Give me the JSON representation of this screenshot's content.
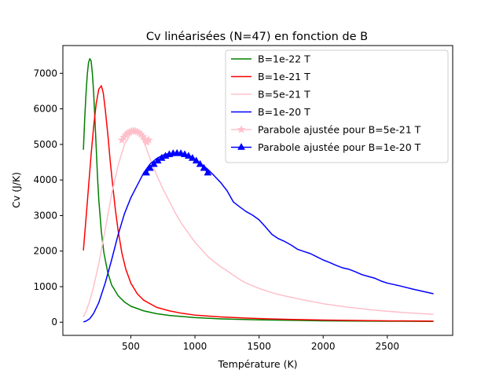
{
  "chart_data": {
    "type": "line",
    "title": "Cv linéarisées (N=47) en fonction de B",
    "xlabel": "Température (K)",
    "ylabel": "Cv (J/K)",
    "xlim": [
      -30,
      3010
    ],
    "ylim": [
      -370,
      7780
    ],
    "xticks": [
      500,
      1000,
      1500,
      2000,
      2500
    ],
    "yticks": [
      0,
      1000,
      2000,
      3000,
      4000,
      5000,
      6000,
      7000
    ],
    "grid": false,
    "legend_position": "top-right",
    "series": [
      {
        "name": "B=1e-22 T",
        "color": "#008000",
        "marker": "none",
        "x": [
          130,
          140,
          150,
          160,
          170,
          180,
          190,
          200,
          210,
          220,
          230,
          240,
          250,
          270,
          290,
          320,
          350,
          400,
          450,
          500,
          600,
          700,
          800,
          1000,
          1200,
          1500,
          2000,
          2500,
          2860
        ],
        "y": [
          4850,
          5700,
          6400,
          6950,
          7300,
          7410,
          7350,
          7000,
          6450,
          5700,
          4900,
          4100,
          3450,
          2550,
          1950,
          1400,
          1050,
          750,
          570,
          450,
          320,
          240,
          190,
          130,
          95,
          65,
          40,
          28,
          22
        ]
      },
      {
        "name": "B=1e-21 T",
        "color": "#ff0000",
        "marker": "none",
        "x": [
          130,
          150,
          170,
          190,
          210,
          230,
          250,
          270,
          285,
          300,
          320,
          340,
          360,
          380,
          400,
          430,
          460,
          500,
          550,
          600,
          700,
          800,
          900,
          1000,
          1200,
          1400,
          1600,
          1800,
          2000,
          2500,
          2860
        ],
        "y": [
          2020,
          2900,
          3800,
          4700,
          5500,
          6150,
          6550,
          6650,
          6450,
          6000,
          5300,
          4500,
          3800,
          3150,
          2600,
          1950,
          1500,
          1100,
          800,
          620,
          420,
          320,
          250,
          200,
          150,
          115,
          90,
          75,
          60,
          40,
          30
        ]
      },
      {
        "name": "B=5e-21 T",
        "color": "#ffc0cb",
        "marker": "none",
        "x": [
          130,
          150,
          180,
          210,
          250,
          300,
          350,
          400,
          450,
          500,
          540,
          580,
          620,
          660,
          700,
          750,
          800,
          850,
          900,
          950,
          1000,
          1050,
          1100,
          1150,
          1200,
          1250,
          1300,
          1350,
          1400,
          1500,
          1600,
          1700,
          1800,
          1900,
          2000,
          2200,
          2400,
          2600,
          2860
        ],
        "y": [
          150,
          300,
          600,
          1000,
          1650,
          2600,
          3600,
          4400,
          5000,
          5300,
          5380,
          5250,
          4900,
          4500,
          4150,
          3750,
          3400,
          3050,
          2750,
          2500,
          2250,
          2050,
          1850,
          1700,
          1560,
          1450,
          1320,
          1200,
          1100,
          950,
          830,
          740,
          660,
          590,
          520,
          420,
          340,
          280,
          220
        ]
      },
      {
        "name": "B=1e-20 T",
        "color": "#0000ff",
        "marker": "none",
        "x": [
          130,
          150,
          180,
          210,
          250,
          300,
          350,
          400,
          450,
          500,
          550,
          600,
          650,
          700,
          750,
          800,
          850,
          900,
          950,
          1000,
          1050,
          1100,
          1150,
          1200,
          1250,
          1300,
          1350,
          1400,
          1450,
          1500,
          1550,
          1600,
          1650,
          1700,
          1750,
          1800,
          1850,
          1900,
          1950,
          2000,
          2050,
          2100,
          2150,
          2200,
          2250,
          2300,
          2350,
          2400,
          2450,
          2500,
          2600,
          2700,
          2860
        ],
        "y": [
          10,
          30,
          100,
          250,
          550,
          1100,
          1750,
          2450,
          3050,
          3500,
          3850,
          4200,
          4450,
          4600,
          4700,
          4750,
          4750,
          4720,
          4650,
          4560,
          4450,
          4300,
          4120,
          3930,
          3700,
          3380,
          3240,
          3110,
          3010,
          2880,
          2680,
          2470,
          2350,
          2270,
          2170,
          2050,
          1990,
          1930,
          1840,
          1750,
          1680,
          1600,
          1530,
          1490,
          1420,
          1340,
          1290,
          1240,
          1160,
          1100,
          1020,
          930,
          800
        ]
      },
      {
        "name": "Parabole ajustée pour B=5e-21 T",
        "color": "#ffc0cb",
        "marker": "star",
        "x": [
          430,
          445,
          460,
          475,
          490,
          505,
          520,
          535,
          550,
          565,
          580,
          595,
          610,
          625,
          640
        ],
        "y": [
          5120,
          5200,
          5265,
          5315,
          5350,
          5372,
          5380,
          5375,
          5356,
          5324,
          5278,
          5219,
          5146,
          5060,
          5120
        ]
      },
      {
        "name": "Parabole ajustée pour B=1e-20 T",
        "color": "#0000ff",
        "marker": "triangle",
        "x": [
          620,
          650,
          680,
          710,
          740,
          770,
          800,
          830,
          860,
          890,
          920,
          950,
          980,
          1010,
          1040,
          1070,
          1100
        ],
        "y": [
          4200,
          4330,
          4440,
          4535,
          4610,
          4670,
          4715,
          4742,
          4750,
          4742,
          4715,
          4670,
          4610,
          4535,
          4440,
          4330,
          4200
        ]
      }
    ]
  }
}
